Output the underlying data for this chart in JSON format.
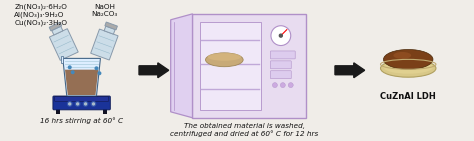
{
  "bg_color": "#f0ede8",
  "label_reagents1": "Zn(NO₃)₂·6H₂O\nAl(NO₃)₃·9H₂O\nCu(NO₃)₂·3H₂O",
  "label_reagents2": "NaOH\nNa₂CO₃",
  "label_step1": "16 hrs stirring at 60° C",
  "label_step2": "The obtained material is washed,\ncentrifuged and dried at 60° C for 12 hrs",
  "label_product": "CuZnAl LDH",
  "oven_fill": "#e8dcf0",
  "oven_edge": "#b090c8",
  "oven_interior": "#ede0f8",
  "shelf_color": "#c0a8d8",
  "door_color": "#e0d0f0",
  "door_edge": "#b090c8",
  "bottle_color": "#ccdde8",
  "bottle_edge": "#8899aa",
  "beaker_body": "#ddeeff",
  "beaker_edge": "#446688",
  "liquid_color": "#8B5E3C",
  "hotplate_color": "#1a3399",
  "hotplate_dark": "#0d1a55",
  "arrow_color": "#1a1a1a",
  "text_color": "#111111",
  "dish_color": "#c8b880",
  "dish_edge": "#a09060",
  "powder_color": "#7a4018",
  "powder_edge": "#4a2808",
  "product_label_color": "#111111",
  "font_size_sm": 5.2,
  "font_size_md": 5.8,
  "font_size_product": 6.0
}
